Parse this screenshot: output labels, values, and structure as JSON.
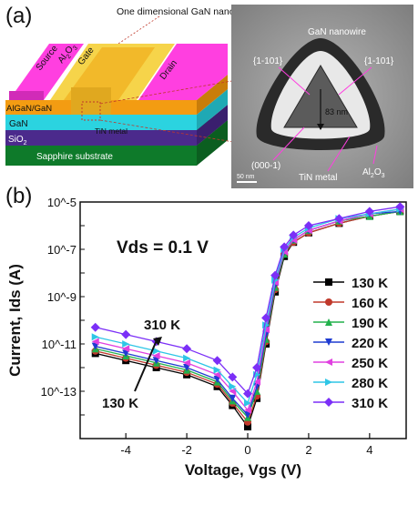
{
  "panel_a": {
    "label": "(a)",
    "device": {
      "title": "One dimensional GaN nanowire array",
      "source": "Source",
      "drain": "Drain",
      "gate": "Gate",
      "al2o3": "Al2O3",
      "algan": "AlGaN/GaN",
      "gan": "GaN",
      "sio2": "SiO2",
      "tin": "TiN metal",
      "substrate": "Sapphire substrate"
    },
    "tem": {
      "nanowire": "GaN nanowire",
      "facet_left": "{1-101}",
      "facet_right": "{1-101}",
      "facet_bottom": "(000-1)",
      "thickness": "83 nm",
      "tin": "TiN metal",
      "al2o3": "Al2O3",
      "scale": "50 nm"
    }
  },
  "panel_b": {
    "label": "(b)",
    "annotation": "Vds = 0.1 V",
    "arrow_top": "310 K",
    "arrow_bottom": "130 K"
  },
  "chart_data": {
    "type": "scatter",
    "xlabel": "Voltage, Vgs (V)",
    "ylabel": "Current, Ids (A)",
    "xlim": [
      -5.5,
      5.2
    ],
    "ylim_log10": [
      -15,
      -5
    ],
    "y_scale": "log",
    "x_ticks": [
      "-4",
      "-2",
      "0",
      "2",
      "4"
    ],
    "y_ticks": [
      "10^-13",
      "10^-11",
      "10^-9",
      "10^-7",
      "10^-5"
    ],
    "legend_position": "right",
    "series": [
      {
        "name": "130 K",
        "color": "#000000",
        "marker": "square",
        "x": [
          -5,
          -4,
          -3,
          -2,
          -1,
          -0.5,
          0,
          0.3,
          0.6,
          0.9,
          1.2,
          1.5,
          2,
          3,
          4,
          5
        ],
        "y": [
          -11.4,
          -11.7,
          -12.0,
          -12.3,
          -12.8,
          -13.6,
          -14.5,
          -13.3,
          -11.0,
          -8.8,
          -7.3,
          -6.7,
          -6.3,
          -5.9,
          -5.6,
          -5.4
        ]
      },
      {
        "name": "160 K",
        "color": "#c0392b",
        "marker": "circle",
        "x": [
          -5,
          -4,
          -3,
          -2,
          -1,
          -0.5,
          0,
          0.3,
          0.6,
          0.9,
          1.2,
          1.5,
          2,
          3,
          4,
          5
        ],
        "y": [
          -11.3,
          -11.6,
          -11.9,
          -12.2,
          -12.7,
          -13.5,
          -14.3,
          -13.2,
          -10.9,
          -8.7,
          -7.2,
          -6.7,
          -6.3,
          -5.9,
          -5.6,
          -5.4
        ]
      },
      {
        "name": "190 K",
        "color": "#22b14c",
        "marker": "triangle-up",
        "x": [
          -5,
          -4,
          -3,
          -2,
          -1,
          -0.5,
          0,
          0.3,
          0.6,
          0.9,
          1.2,
          1.5,
          2,
          3,
          4,
          5
        ],
        "y": [
          -11.2,
          -11.5,
          -11.8,
          -12.1,
          -12.6,
          -13.4,
          -14.1,
          -13.0,
          -10.8,
          -8.6,
          -7.2,
          -6.6,
          -6.2,
          -5.8,
          -5.6,
          -5.4
        ]
      },
      {
        "name": "220 K",
        "color": "#1f3bd1",
        "marker": "triangle-down",
        "x": [
          -5,
          -4,
          -3,
          -2,
          -1,
          -0.5,
          0,
          0.3,
          0.6,
          0.9,
          1.2,
          1.5,
          2,
          3,
          4,
          5
        ],
        "y": [
          -11.1,
          -11.4,
          -11.7,
          -12.0,
          -12.5,
          -13.3,
          -14.0,
          -12.8,
          -10.6,
          -8.5,
          -7.1,
          -6.6,
          -6.2,
          -5.8,
          -5.5,
          -5.4
        ]
      },
      {
        "name": "250 K",
        "color": "#e040e0",
        "marker": "triangle-left",
        "x": [
          -5,
          -4,
          -3,
          -2,
          -1,
          -0.5,
          0,
          0.3,
          0.6,
          0.9,
          1.2,
          1.5,
          2,
          3,
          4,
          5
        ],
        "y": [
          -10.9,
          -11.2,
          -11.5,
          -11.8,
          -12.3,
          -13.0,
          -13.8,
          -12.6,
          -10.4,
          -8.4,
          -7.1,
          -6.6,
          -6.2,
          -5.8,
          -5.5,
          -5.3
        ]
      },
      {
        "name": "280 K",
        "color": "#2ec6e6",
        "marker": "triangle-right",
        "x": [
          -5,
          -4,
          -3,
          -2,
          -1,
          -0.5,
          0,
          0.3,
          0.6,
          0.9,
          1.2,
          1.5,
          2,
          3,
          4,
          5
        ],
        "y": [
          -10.7,
          -11.0,
          -11.3,
          -11.6,
          -12.1,
          -12.8,
          -13.5,
          -12.3,
          -10.2,
          -8.3,
          -7.0,
          -6.5,
          -6.1,
          -5.7,
          -5.5,
          -5.3
        ]
      },
      {
        "name": "310 K",
        "color": "#7b2ff7",
        "marker": "diamond",
        "x": [
          -5,
          -4,
          -3,
          -2,
          -1,
          -0.5,
          0,
          0.3,
          0.6,
          0.9,
          1.2,
          1.5,
          2,
          3,
          4,
          5
        ],
        "y": [
          -10.3,
          -10.6,
          -10.9,
          -11.2,
          -11.7,
          -12.4,
          -13.1,
          -12.0,
          -9.9,
          -8.1,
          -6.9,
          -6.4,
          -6.0,
          -5.7,
          -5.4,
          -5.2
        ]
      }
    ]
  }
}
